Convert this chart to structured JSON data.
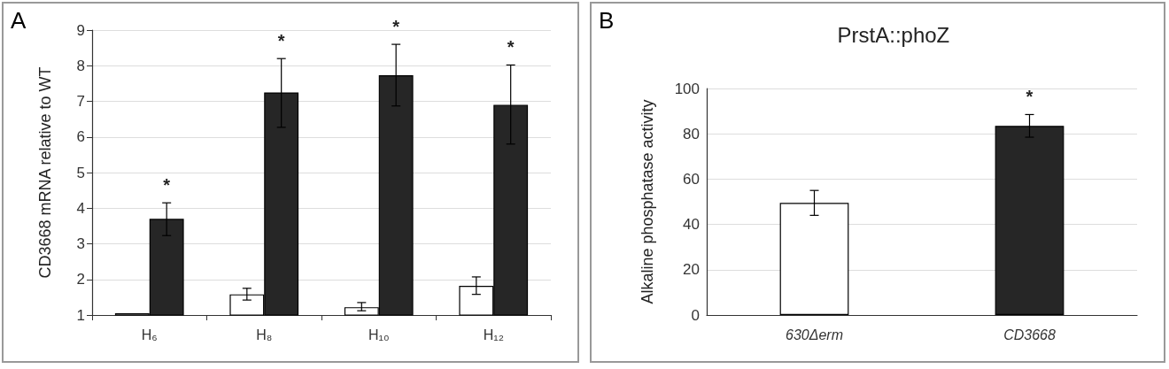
{
  "chart_data": [
    {
      "type": "bar",
      "ylabel": "CD3668 mRNA relative to WT",
      "categories": [
        "H₆",
        "H₈",
        "H₁₀",
        "H₁₂"
      ],
      "series": [
        {
          "color": "#ffffff",
          "values": [
            1.05,
            1.58,
            1.22,
            1.82
          ],
          "errors": [
            null,
            [
              1.42,
              1.75
            ],
            [
              1.12,
              1.35
            ],
            [
              1.58,
              2.07
            ]
          ]
        },
        {
          "color": "#262626",
          "values": [
            3.7,
            7.25,
            7.73,
            6.9
          ],
          "errors": [
            [
              3.23,
              4.15
            ],
            [
              6.27,
              8.2
            ],
            [
              6.87,
              8.6
            ],
            [
              5.8,
              8.02
            ]
          ]
        }
      ],
      "ylim": [
        1,
        9
      ],
      "yticks": [
        1,
        2,
        3,
        4,
        5,
        6,
        7,
        8,
        9
      ],
      "grid": "y",
      "annotations": [
        "A",
        "*",
        "*",
        "*",
        "*"
      ]
    },
    {
      "type": "bar",
      "title": "PrstA::phoZ",
      "ylabel": "Alkaline phosphatase activity",
      "categories": [
        "630Δerm",
        "CD3668"
      ],
      "values": [
        49.5,
        83.5
      ],
      "colors": [
        "#ffffff",
        "#262626"
      ],
      "errors": [
        [
          44,
          55
        ],
        [
          78.5,
          88.5
        ]
      ],
      "ylim": [
        0,
        100
      ],
      "yticks": [
        0,
        20,
        40,
        60,
        80,
        100
      ],
      "grid": "y",
      "annotations": [
        "B",
        "*"
      ]
    }
  ]
}
